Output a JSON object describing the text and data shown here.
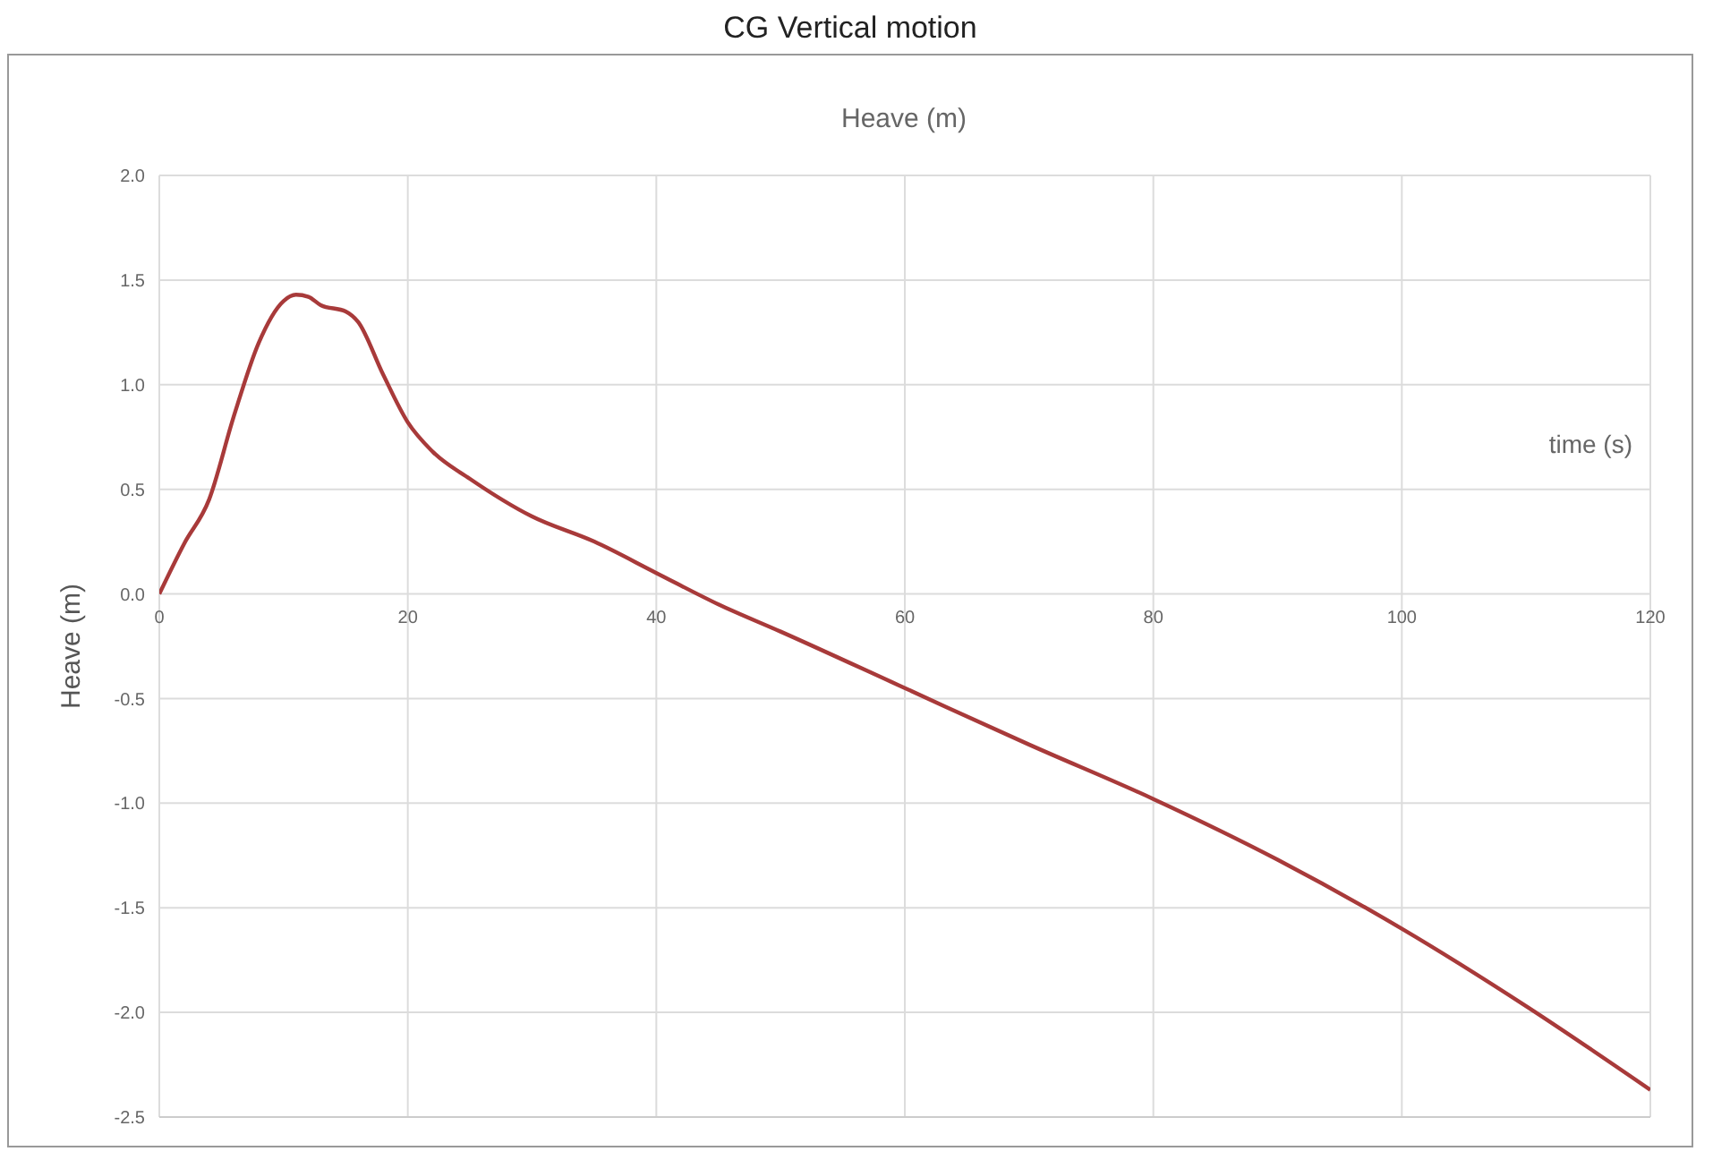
{
  "chart_data": {
    "type": "line",
    "title": "CG Vertical motion",
    "subtitle": "Heave (m)",
    "xlabel": "time (s)",
    "ylabel": "Heave (m)",
    "x": [
      0,
      2,
      4,
      6,
      8,
      10,
      11,
      12,
      13,
      15,
      16,
      18,
      20,
      22,
      25,
      30,
      35,
      40,
      45,
      50,
      60,
      70,
      80,
      90,
      100,
      110,
      120
    ],
    "series": [
      {
        "color": "#a83a3a",
        "values": [
          0,
          0.24,
          0.45,
          0.85,
          1.2,
          1.4,
          1.43,
          1.42,
          1.38,
          1.35,
          1.3,
          1.05,
          0.82,
          0.68,
          0.55,
          0.37,
          0.25,
          0.1,
          -0.05,
          -0.18,
          -0.45,
          -0.72,
          -0.98,
          -1.27,
          -1.6,
          -1.97,
          -2.37
        ]
      }
    ],
    "xlim": [
      0,
      120
    ],
    "xticks": [
      0,
      20,
      40,
      60,
      80,
      100,
      120
    ],
    "ylim": [
      -2.5,
      2.0
    ],
    "yticks": [
      {
        "value": -2.5,
        "label": "-2.5"
      },
      {
        "value": -2,
        "label": "-2.0"
      },
      -1.5,
      {
        "value": -1,
        "label": "-1.0"
      },
      -0.5,
      {
        "value": 0,
        "label": "0.0"
      },
      0.5,
      {
        "value": 1,
        "label": "1.0"
      },
      1.5,
      {
        "value": 2,
        "label": "2.0"
      }
    ],
    "grid": true,
    "legend": false,
    "marker": "none",
    "line_style": "solid"
  }
}
